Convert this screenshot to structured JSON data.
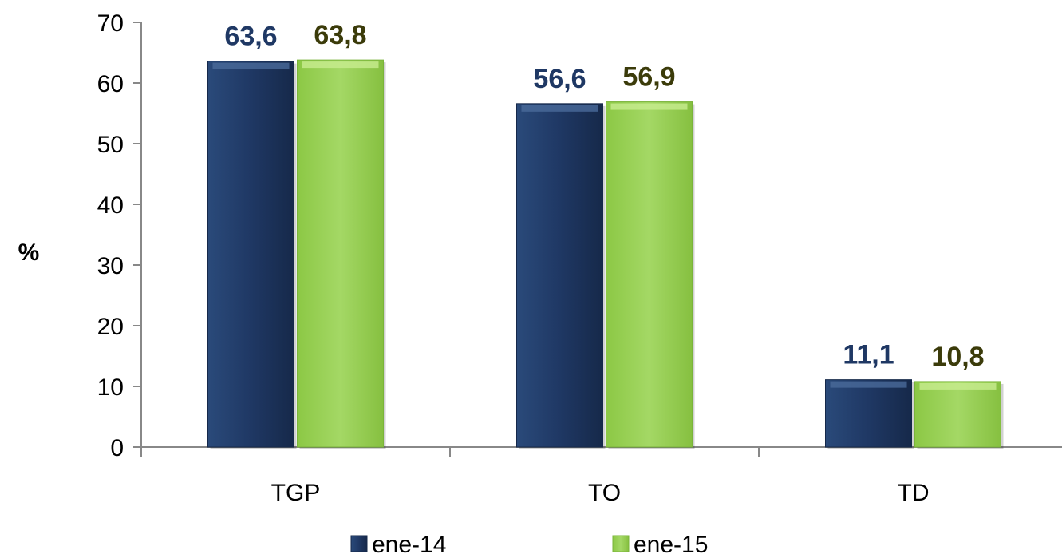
{
  "chart_data": {
    "type": "bar",
    "categories": [
      "TGP",
      "TO",
      "TD"
    ],
    "series": [
      {
        "name": "ene-14",
        "values": [
          63.6,
          56.6,
          11.1
        ],
        "labels": [
          "63,6",
          "56,6",
          "11,1"
        ],
        "color": "#1f3864",
        "label_color": "#1f3864"
      },
      {
        "name": "ene-15",
        "values": [
          63.8,
          56.9,
          10.8
        ],
        "labels": [
          "63,8",
          "56,9",
          "10,8"
        ],
        "color": "#92d050",
        "label_color": "#3b3b0a"
      }
    ],
    "title": "",
    "xlabel": "",
    "ylabel": "%",
    "ylim": [
      0,
      70
    ],
    "yticks": [
      0,
      10,
      20,
      30,
      40,
      50,
      60,
      70
    ],
    "grid": false,
    "legend_position": "bottom"
  }
}
